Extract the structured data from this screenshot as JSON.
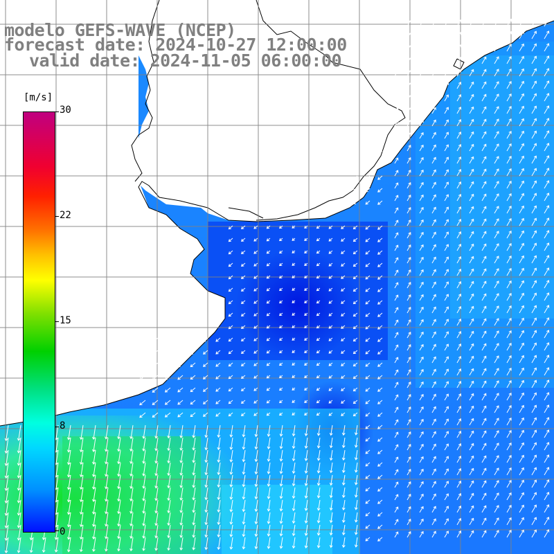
{
  "title": {
    "model": "modelo GEFS-WAVE (NCEP)",
    "forecast": "forecast date: 2024-10-27 12:00:00",
    "valid": "valid date: 2024-11-05 06:00:00"
  },
  "colorbar": {
    "unit": "[m/s]",
    "ticks": [
      "30",
      "22",
      "15",
      "8",
      "0"
    ],
    "range": [
      0,
      30
    ]
  },
  "colors": {
    "land": "#ffffff",
    "coast": "#000000",
    "grid": "#808080",
    "arrows": "#ffffff",
    "title_text": "#808080"
  }
}
